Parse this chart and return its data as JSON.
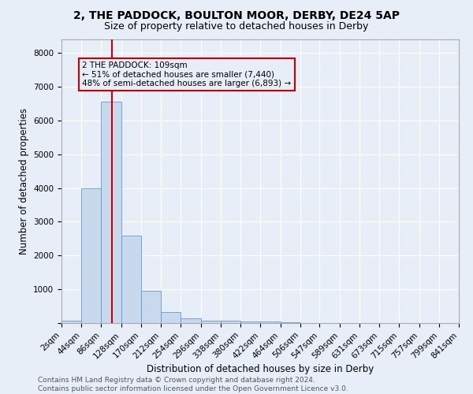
{
  "title1": "2, THE PADDOCK, BOULTON MOOR, DERBY, DE24 5AP",
  "title2": "Size of property relative to detached houses in Derby",
  "xlabel": "Distribution of detached houses by size in Derby",
  "ylabel": "Number of detached properties",
  "bin_edges": [
    2,
    44,
    86,
    128,
    170,
    212,
    254,
    296,
    338,
    380,
    422,
    464,
    506,
    547,
    589,
    631,
    673,
    715,
    757,
    799,
    841
  ],
  "bar_heights": [
    75,
    4000,
    6550,
    2600,
    950,
    320,
    130,
    75,
    60,
    50,
    40,
    20,
    10,
    8,
    5,
    4,
    3,
    2,
    2,
    2
  ],
  "bar_color": "#c8d9ee",
  "bar_edgecolor": "#6699cc",
  "property_size": 109,
  "annotation_title": "2 THE PADDOCK: 109sqm",
  "annotation_line1": "← 51% of detached houses are smaller (7,440)",
  "annotation_line2": "48% of semi-detached houses are larger (6,893) →",
  "vline_color": "#cc0000",
  "annotation_box_edgecolor": "#cc0000",
  "ylim": [
    0,
    8400
  ],
  "yticks": [
    0,
    1000,
    2000,
    3000,
    4000,
    5000,
    6000,
    7000,
    8000
  ],
  "tick_labels": [
    "2sqm",
    "44sqm",
    "86sqm",
    "128sqm",
    "170sqm",
    "212sqm",
    "254sqm",
    "296sqm",
    "338sqm",
    "380sqm",
    "422sqm",
    "464sqm",
    "506sqm",
    "547sqm",
    "589sqm",
    "631sqm",
    "673sqm",
    "715sqm",
    "757sqm",
    "799sqm",
    "841sqm"
  ],
  "footer_line1": "Contains HM Land Registry data © Crown copyright and database right 2024.",
  "footer_line2": "Contains public sector information licensed under the Open Government Licence v3.0.",
  "background_color": "#e8eef8",
  "grid_color": "#ffffff",
  "title1_fontsize": 10,
  "title2_fontsize": 9,
  "axis_label_fontsize": 8.5,
  "tick_fontsize": 7.5,
  "footer_fontsize": 6.5,
  "ann_fontsize": 7.5
}
